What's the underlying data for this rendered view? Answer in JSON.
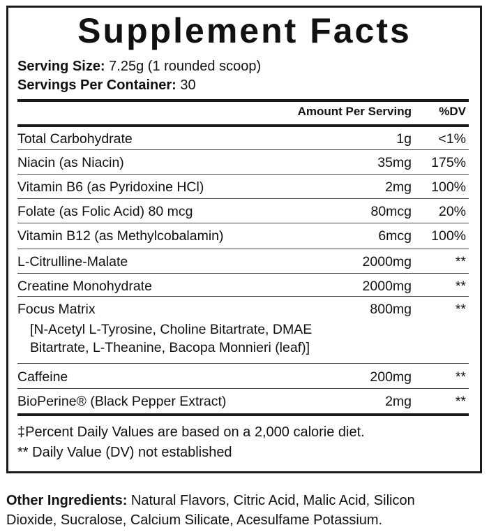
{
  "title": "Supplement Facts",
  "serving_size": {
    "label": "Serving Size:",
    "value": "7.25g (1 rounded scoop)"
  },
  "servings_per_container": {
    "label": "Servings Per Container:",
    "value": "30"
  },
  "header": {
    "amount": "Amount Per Serving",
    "dv": "%DV"
  },
  "rows": [
    {
      "name": "Total Carbohydrate",
      "amount": "1g",
      "dv": "<1%"
    },
    {
      "name": "Niacin (as Niacin)",
      "amount": "35mg",
      "dv": "175%"
    },
    {
      "name": "Vitamin B6 (as Pyridoxine HCl)",
      "amount": "2mg",
      "dv": "100%"
    },
    {
      "name": "Folate (as Folic Acid) 80 mcg",
      "amount": "80mcg",
      "dv": "20%"
    },
    {
      "name": "Vitamin B12 (as Methylcobalamin)",
      "amount": "6mcg",
      "dv": "100%"
    },
    {
      "name": "L-Citrulline-Malate",
      "amount": "2000mg",
      "dv": "**"
    },
    {
      "name": "Creatine Monohydrate",
      "amount": "2000mg",
      "dv": "**"
    },
    {
      "name": "Focus Matrix",
      "amount": "800mg",
      "dv": "**",
      "sub": [
        "[N-Acetyl L-Tyrosine, Choline Bitartrate, DMAE",
        "Bitartrate, L-Theanine, Bacopa Monnieri (leaf)]"
      ]
    },
    {
      "name": "Caffeine",
      "amount": "200mg",
      "dv": "**"
    },
    {
      "name": "BioPerine® (Black Pepper Extract)",
      "amount": "2mg",
      "dv": "**"
    }
  ],
  "footnotes": [
    "‡Percent Daily Values are based on a 2,000 calorie diet.",
    "** Daily Value (DV) not established"
  ],
  "other_ingredients": {
    "label": "Other Ingredients:",
    "line1": "Natural Flavors, Citric Acid, Malic Acid, Silicon",
    "line2": "Dioxide, Sucralose, Calcium Silicate, Acesulfame Potassium."
  }
}
